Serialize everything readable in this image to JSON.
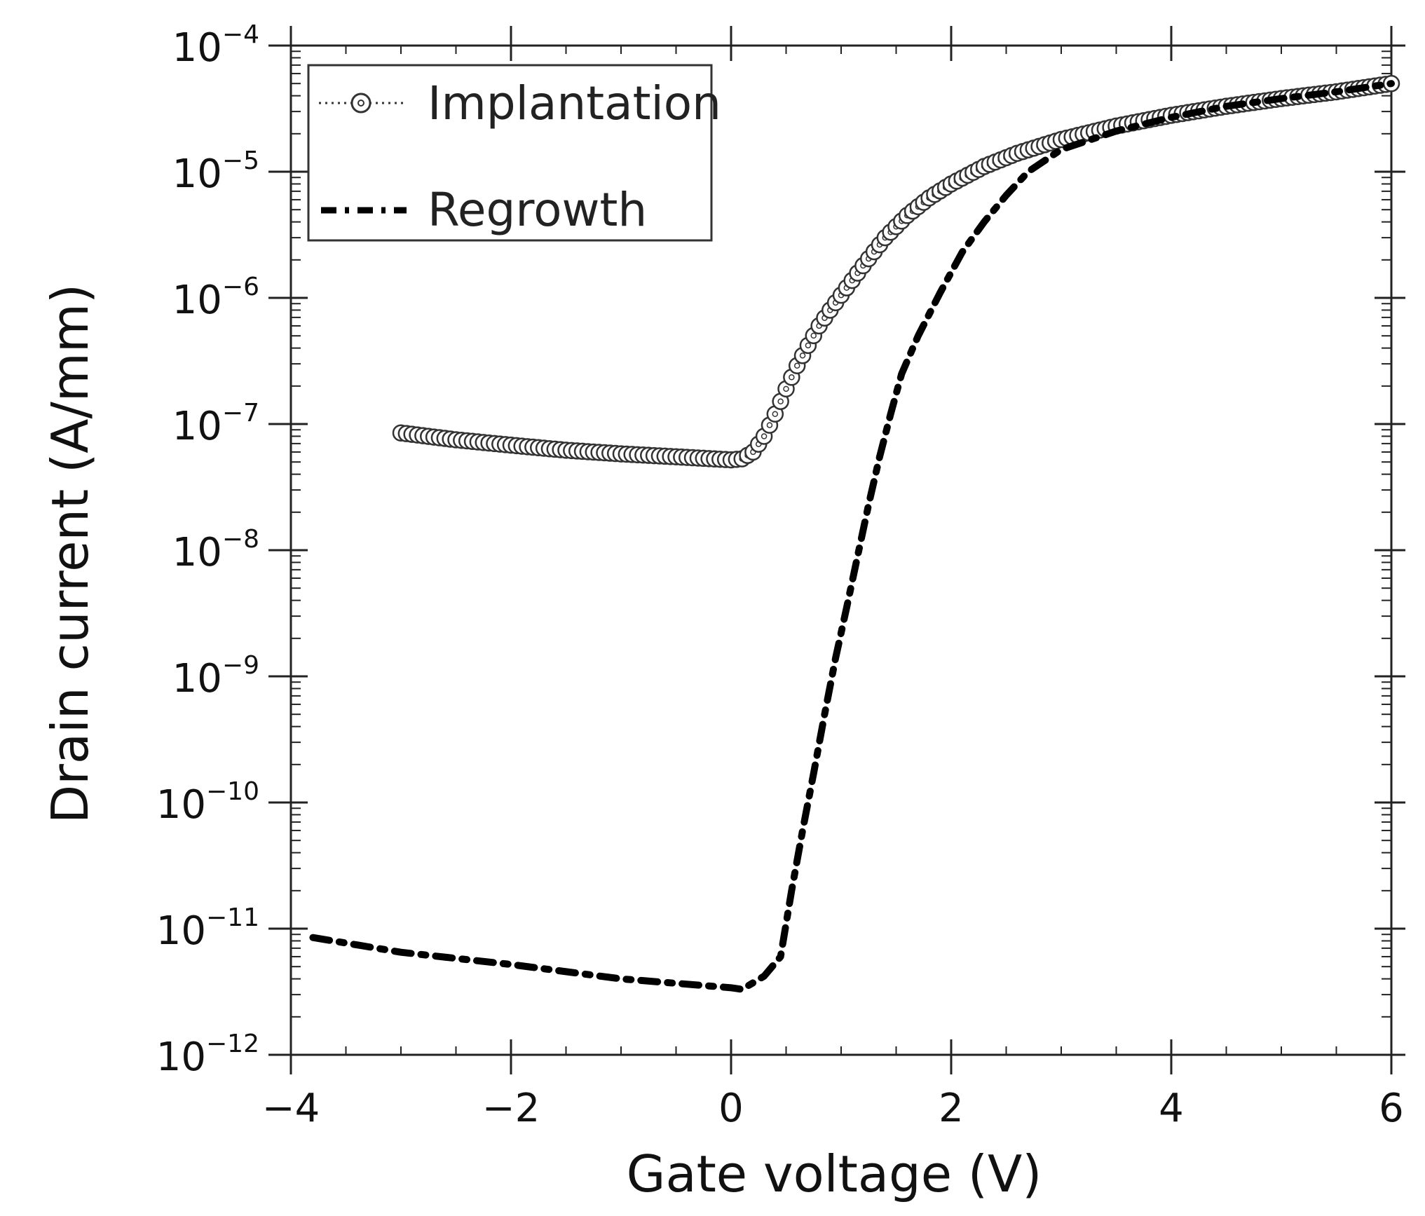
{
  "chart_data": {
    "type": "scatter",
    "xlabel": "Gate voltage  (V)",
    "ylabel": "Drain current  (A/mm)",
    "xlim": [
      -4,
      6
    ],
    "ylim": [
      1e-12,
      0.0001
    ],
    "y_scale": "log",
    "x_ticks": [
      -4,
      -2,
      0,
      2,
      4,
      6
    ],
    "x_tick_labels": [
      "−4",
      "−2",
      "0",
      "2",
      "4",
      "6"
    ],
    "y_ticks": [
      1e-12,
      1e-11,
      1e-10,
      1e-09,
      1e-08,
      1e-07,
      1e-06,
      1e-05,
      0.0001
    ],
    "y_tick_labels": [
      {
        "base": "10",
        "exp": "−12"
      },
      {
        "base": "10",
        "exp": "−11"
      },
      {
        "base": "10",
        "exp": "−10"
      },
      {
        "base": "10",
        "exp": "−9"
      },
      {
        "base": "10",
        "exp": "−8"
      },
      {
        "base": "10",
        "exp": "−7"
      },
      {
        "base": "10",
        "exp": "−6"
      },
      {
        "base": "10",
        "exp": "−5"
      },
      {
        "base": "10",
        "exp": "−4"
      }
    ],
    "grid": false,
    "legend_position": "top-left",
    "series": [
      {
        "name": "Implantation",
        "marker": "open-circle",
        "line": "dotted",
        "color": "#333333",
        "x": [
          -3.0,
          -2.5,
          -2.0,
          -1.5,
          -1.0,
          -0.5,
          0.0,
          0.1,
          0.2,
          0.3,
          0.4,
          0.5,
          0.6,
          0.7,
          0.8,
          0.9,
          1.0,
          1.2,
          1.4,
          1.6,
          1.8,
          2.0,
          2.3,
          2.6,
          3.0,
          3.5,
          4.0,
          4.5,
          5.0,
          5.5,
          6.0
        ],
        "y": [
          8.5e-08,
          7.5e-08,
          6.8e-08,
          6.2e-08,
          5.8e-08,
          5.5e-08,
          5.2e-08,
          5.3e-08,
          6e-08,
          8e-08,
          1.2e-07,
          1.9e-07,
          2.9e-07,
          4.2e-07,
          6e-07,
          8e-07,
          1.05e-06,
          1.8e-06,
          3e-06,
          4.5e-06,
          6.2e-06,
          8e-06,
          1.1e-05,
          1.4e-05,
          1.8e-05,
          2.3e-05,
          2.8e-05,
          3.3e-05,
          3.8e-05,
          4.3e-05,
          5e-05
        ]
      },
      {
        "name": "Regrowth",
        "marker": "none",
        "line": "dash-dot",
        "color": "#000000",
        "x": [
          -3.8,
          -3.0,
          -2.0,
          -1.0,
          0.0,
          0.1,
          0.3,
          0.45,
          0.55,
          0.65,
          0.75,
          0.85,
          0.95,
          1.05,
          1.15,
          1.25,
          1.35,
          1.45,
          1.55,
          1.7,
          1.9,
          2.1,
          2.3,
          2.5,
          2.7,
          3.0,
          3.5,
          4.0,
          4.5,
          5.0,
          5.5,
          6.0
        ],
        "y": [
          8.5e-12,
          6.5e-12,
          5.2e-12,
          4e-12,
          3.4e-12,
          3.3e-12,
          4.2e-12,
          6e-12,
          2e-11,
          6e-11,
          1.7e-10,
          5e-10,
          1.4e-09,
          3.5e-09,
          9e-09,
          2.3e-08,
          5.5e-08,
          1.2e-07,
          2.5e-07,
          5e-07,
          1.1e-06,
          2.3e-06,
          4e-06,
          6.5e-06,
          1e-05,
          1.5e-05,
          2.1e-05,
          2.7e-05,
          3.3e-05,
          3.8e-05,
          4.3e-05,
          5e-05
        ]
      }
    ]
  }
}
